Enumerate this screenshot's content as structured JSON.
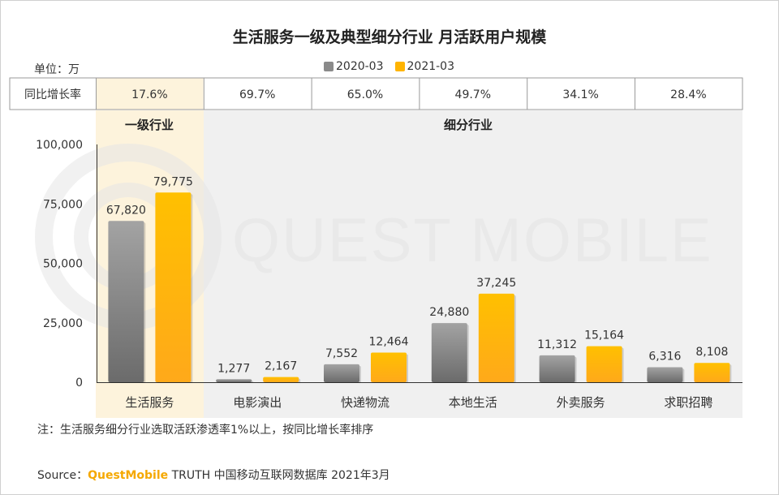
{
  "title": "生活服务一级及典型细分行业 月活跃用户规模",
  "unit_label": "单位：万",
  "yoy_label": "同比增长率",
  "group_labels": {
    "primary": "一级行业",
    "sub": "细分行业"
  },
  "colors": {
    "series_2020": "#8a8a8a",
    "series_2021": "#ffb400",
    "highlight_bg": "#fdf3dc",
    "sub_bg": "#f0f0f0"
  },
  "watermark": "QUEST MOBILE",
  "note": "注：生活服务细分行业选取活跃渗透率1%以上，按同比增长率排序",
  "source": {
    "prefix": "Source：",
    "brand": "QuestMobile",
    "rest": " TRUTH 中国移动互联网数据库 2021年3月"
  },
  "chart_data": {
    "type": "bar",
    "categories": [
      "生活服务",
      "电影演出",
      "快递物流",
      "本地生活",
      "外卖服务",
      "求职招聘"
    ],
    "series": [
      {
        "name": "2020-03",
        "values": [
          67820,
          1277,
          7552,
          24880,
          11312,
          6316
        ],
        "labels": [
          "67,820",
          "1,277",
          "7,552",
          "24,880",
          "11,312",
          "6,316"
        ]
      },
      {
        "name": "2021-03",
        "values": [
          79775,
          2167,
          12464,
          37245,
          15164,
          8108
        ],
        "labels": [
          "79,775",
          "2,167",
          "12,464",
          "37,245",
          "15,164",
          "8,108"
        ]
      }
    ],
    "yoy_growth": [
      "17.6%",
      "69.7%",
      "65.0%",
      "49.7%",
      "34.1%",
      "28.4%"
    ],
    "ylim": [
      0,
      100000
    ],
    "yticks": [
      0,
      25000,
      50000,
      75000,
      100000
    ],
    "ytick_labels": [
      "0",
      "25,000",
      "50,000",
      "75,000",
      "100,000"
    ],
    "grid": false,
    "legend": "top-center"
  }
}
